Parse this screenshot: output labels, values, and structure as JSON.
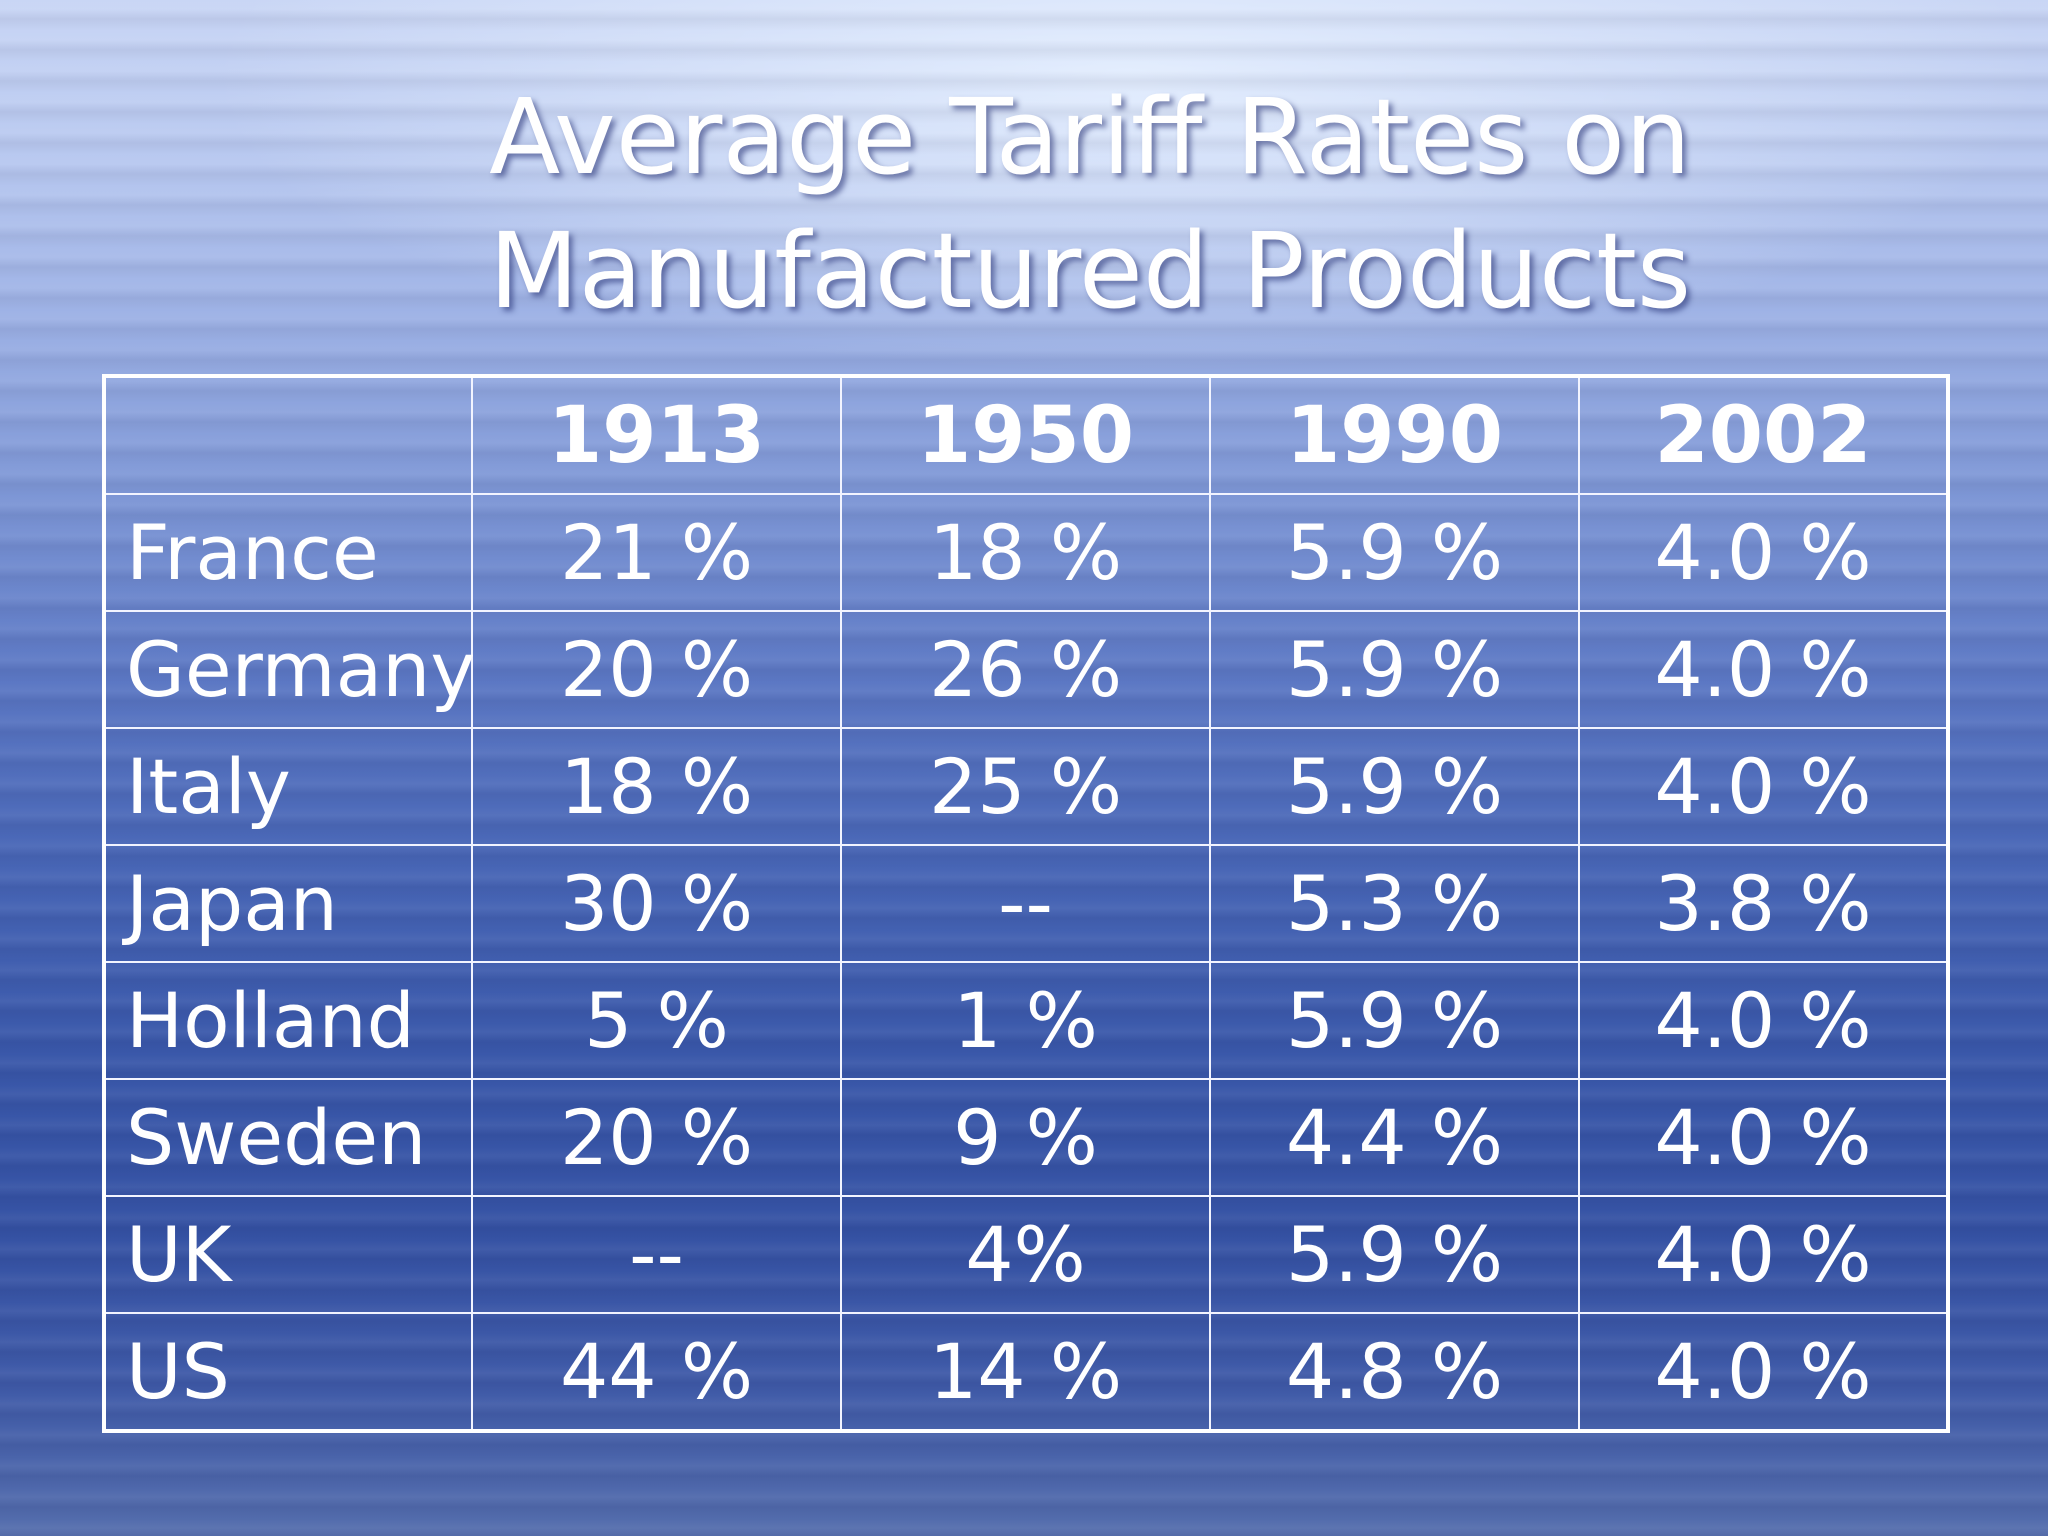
{
  "slide": {
    "title_line1": "Average Tariff Rates on",
    "title_line2": "Manufactured Products"
  },
  "table": {
    "corner": "",
    "headers": [
      "1913",
      "1950",
      "1990",
      "2002"
    ],
    "rows": [
      {
        "country": "France",
        "values": [
          "21 %",
          "18 %",
          "5.9 %",
          "4.0 %"
        ]
      },
      {
        "country": "Germany",
        "values": [
          "20 %",
          "26 %",
          "5.9 %",
          "4.0 %"
        ]
      },
      {
        "country": "Italy",
        "values": [
          "18 %",
          "25 %",
          "5.9 %",
          "4.0 %"
        ]
      },
      {
        "country": "Japan",
        "values": [
          "30 %",
          "--",
          "5.3 %",
          "3.8 %"
        ]
      },
      {
        "country": "Holland",
        "values": [
          "5 %",
          "1 %",
          "5.9 %",
          "4.0 %"
        ]
      },
      {
        "country": "Sweden",
        "values": [
          "20 %",
          "9 %",
          "4.4 %",
          "4.0 %"
        ]
      },
      {
        "country": "UK",
        "values": [
          "--",
          "4%",
          "5.9 %",
          "4.0 %"
        ]
      },
      {
        "country": "US",
        "values": [
          "44 %",
          "14 %",
          "4.8 %",
          "4.0 %"
        ]
      }
    ]
  },
  "colors": {
    "text": "#ffffff",
    "grid": "#ffffff",
    "background_top": "#c9d6f5",
    "background_bottom": "#3552a4"
  }
}
